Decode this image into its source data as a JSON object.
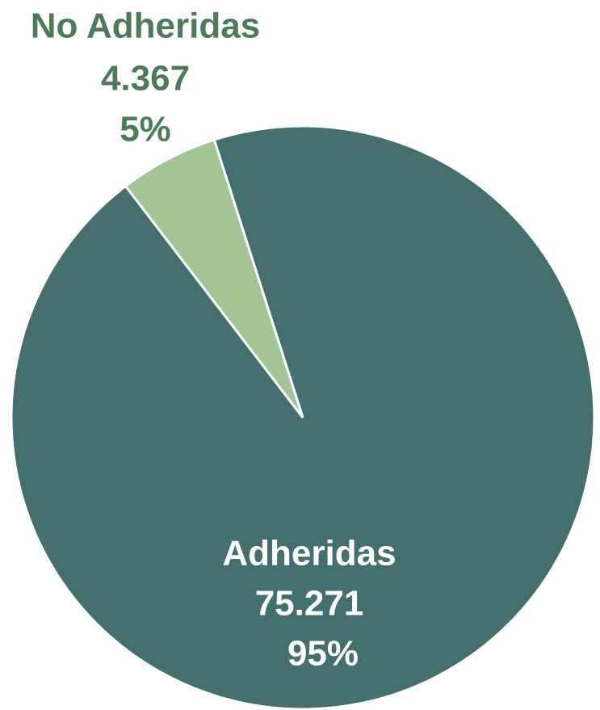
{
  "chart_data": {
    "type": "pie",
    "categories": [
      "Adheridas",
      "No Adheridas"
    ],
    "values": [
      75271,
      4367
    ],
    "value_labels": [
      "75.271",
      "4.367"
    ],
    "percents": [
      95,
      5
    ],
    "percent_labels": [
      "95%",
      "5%"
    ],
    "colors": [
      "#436f6e",
      "#a3c593"
    ]
  }
}
